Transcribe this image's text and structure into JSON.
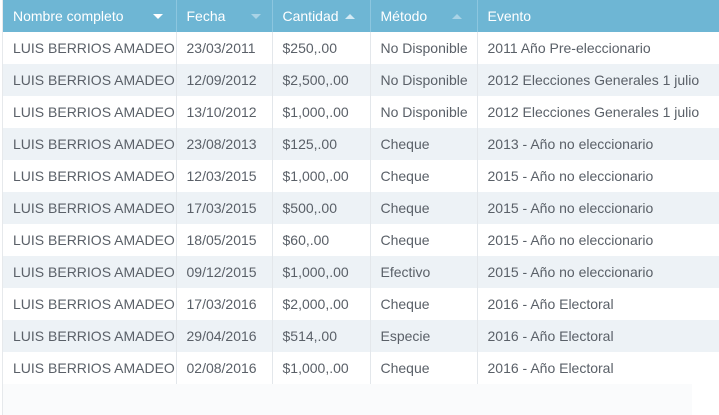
{
  "columns": [
    {
      "label": "Nombre completo",
      "sort": "down"
    },
    {
      "label": "Fecha",
      "sort": "down-dim"
    },
    {
      "label": "Cantidad",
      "sort": "up"
    },
    {
      "label": "Método",
      "sort": "up-dim"
    },
    {
      "label": "Evento",
      "sort": "none"
    }
  ],
  "rows": [
    {
      "nombre": "LUIS BERRIOS AMADEO",
      "fecha": "23/03/2011",
      "cantidad": "$250,.00",
      "metodo": "No Disponible",
      "evento": "2011 Año Pre-eleccionario"
    },
    {
      "nombre": "LUIS BERRIOS AMADEO",
      "fecha": "12/09/2012",
      "cantidad": "$2,500,.00",
      "metodo": "No Disponible",
      "evento": "2012 Elecciones Generales 1 julio"
    },
    {
      "nombre": "LUIS BERRIOS AMADEO",
      "fecha": "13/10/2012",
      "cantidad": "$1,000,.00",
      "metodo": "No Disponible",
      "evento": "2012 Elecciones Generales 1 julio"
    },
    {
      "nombre": "LUIS BERRIOS AMADEO",
      "fecha": "23/08/2013",
      "cantidad": "$125,.00",
      "metodo": "Cheque",
      "evento": "2013 - Año no eleccionario"
    },
    {
      "nombre": "LUIS BERRIOS AMADEO",
      "fecha": "12/03/2015",
      "cantidad": "$1,000,.00",
      "metodo": "Cheque",
      "evento": "2015 - Año no eleccionario"
    },
    {
      "nombre": "LUIS BERRIOS AMADEO",
      "fecha": "17/03/2015",
      "cantidad": "$500,.00",
      "metodo": "Cheque",
      "evento": "2015 - Año no eleccionario"
    },
    {
      "nombre": "LUIS BERRIOS AMADEO",
      "fecha": "18/05/2015",
      "cantidad": "$60,.00",
      "metodo": "Cheque",
      "evento": "2015 - Año no eleccionario"
    },
    {
      "nombre": "LUIS BERRIOS AMADEO",
      "fecha": "09/12/2015",
      "cantidad": "$1,000,.00",
      "metodo": "Efectivo",
      "evento": "2015 - Año no eleccionario"
    },
    {
      "nombre": "LUIS BERRIOS AMADEO",
      "fecha": "17/03/2016",
      "cantidad": "$2,000,.00",
      "metodo": "Cheque",
      "evento": "2016 - Año Electoral"
    },
    {
      "nombre": "LUIS BERRIOS AMADEO",
      "fecha": "29/04/2016",
      "cantidad": "$514,.00",
      "metodo": "Especie",
      "evento": "2016 - Año Electoral"
    },
    {
      "nombre": "LUIS BERRIOS AMADEO",
      "fecha": "02/08/2016",
      "cantidad": "$1,000,.00",
      "metodo": "Cheque",
      "evento": "2016 - Año Electoral"
    }
  ],
  "colors": {
    "header": "#6eb6d4",
    "row_alt": "#edf2f6",
    "text": "#5a6068"
  }
}
